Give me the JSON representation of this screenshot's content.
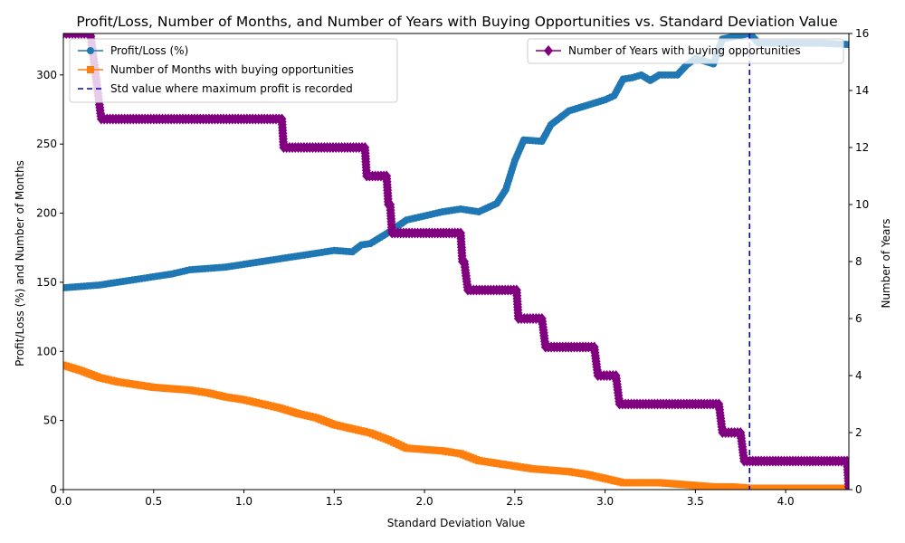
{
  "chart_data": {
    "type": "line",
    "title": "Profit/Loss, Number of Months, and Number of Years with Buying Opportunities vs. Standard Deviation Value",
    "xlabel": "Standard Deviation Value",
    "ylabel_left": "Profit/Loss (%) and Number of Months",
    "ylabel_right": "Number of Years",
    "xlim": [
      0,
      4.35
    ],
    "ylim_left": [
      0,
      330
    ],
    "ylim_right": [
      0,
      16
    ],
    "x_ticks": [
      "0.0",
      "0.5",
      "1.0",
      "1.5",
      "2.0",
      "2.5",
      "3.0",
      "3.5",
      "4.0"
    ],
    "y_left_ticks": [
      "0",
      "50",
      "100",
      "150",
      "200",
      "250",
      "300"
    ],
    "y_right_ticks": [
      "0",
      "2",
      "4",
      "6",
      "8",
      "10",
      "12",
      "14",
      "16"
    ],
    "grid": false,
    "std_max_profit": 3.8,
    "series": [
      {
        "name": "Profit/Loss (%)",
        "axis": "left",
        "color": "#1f77b4",
        "marker": "circle",
        "x": [
          0.0,
          0.1,
          0.2,
          0.3,
          0.4,
          0.5,
          0.6,
          0.7,
          0.8,
          0.9,
          1.0,
          1.1,
          1.2,
          1.3,
          1.4,
          1.5,
          1.6,
          1.65,
          1.7,
          1.8,
          1.9,
          2.0,
          2.1,
          2.2,
          2.3,
          2.4,
          2.45,
          2.5,
          2.55,
          2.65,
          2.7,
          2.8,
          2.9,
          3.0,
          3.05,
          3.1,
          3.15,
          3.2,
          3.25,
          3.3,
          3.4,
          3.45,
          3.5,
          3.6,
          3.65,
          3.8,
          3.85,
          4.0,
          4.2,
          4.35
        ],
        "y": [
          146,
          147,
          148,
          150,
          152,
          154,
          156,
          159,
          160,
          161,
          163,
          165,
          167,
          169,
          171,
          173,
          172,
          177,
          178,
          186,
          195,
          198,
          201,
          203,
          201,
          207,
          217,
          238,
          253,
          252,
          264,
          274,
          278,
          282,
          285,
          297,
          298,
          300,
          296,
          300,
          300,
          307,
          312,
          308,
          326,
          330,
          323,
          323,
          323,
          322
        ]
      },
      {
        "name": "Number of Months with buying opportunities",
        "axis": "left",
        "color": "#ff7f0e",
        "marker": "square",
        "x": [
          0.0,
          0.1,
          0.2,
          0.3,
          0.4,
          0.5,
          0.6,
          0.7,
          0.8,
          0.9,
          1.0,
          1.1,
          1.2,
          1.3,
          1.4,
          1.5,
          1.6,
          1.7,
          1.8,
          1.9,
          2.0,
          2.1,
          2.2,
          2.3,
          2.4,
          2.5,
          2.6,
          2.7,
          2.8,
          2.9,
          3.0,
          3.1,
          3.2,
          3.3,
          3.4,
          3.5,
          3.6,
          3.7,
          3.8,
          4.0,
          4.2,
          4.35
        ],
        "y": [
          90,
          86,
          81,
          78,
          76,
          74,
          73,
          72,
          70,
          67,
          65,
          62,
          59,
          55,
          52,
          47,
          44,
          41,
          36,
          30,
          29,
          28,
          26,
          21,
          19,
          17,
          15,
          14,
          13,
          11,
          8,
          5,
          5,
          5,
          4,
          3,
          2,
          2,
          1,
          1,
          1,
          1
        ]
      },
      {
        "name": "Number of Years with buying opportunities",
        "axis": "right",
        "color": "#800080",
        "marker": "diamond",
        "x": [
          0.0,
          0.15,
          0.17,
          0.19,
          0.21,
          1.21,
          1.22,
          1.67,
          1.68,
          1.79,
          1.8,
          1.81,
          1.82,
          2.2,
          2.21,
          2.22,
          2.24,
          2.51,
          2.52,
          2.65,
          2.67,
          2.94,
          2.96,
          3.06,
          3.08,
          3.63,
          3.65,
          3.75,
          3.77,
          4.34,
          4.35
        ],
        "y": [
          16,
          16,
          15,
          14,
          13,
          13,
          12,
          12,
          11,
          11,
          10,
          10,
          9,
          9,
          8,
          8,
          7,
          7,
          6,
          6,
          5,
          5,
          4,
          4,
          3,
          3,
          2,
          2,
          1,
          1,
          0
        ]
      }
    ],
    "legend_left": {
      "placement": "upper-left",
      "entries": [
        "Profit/Loss (%)",
        "Number of Months with buying opportunities",
        "Std value where maximum profit is recorded"
      ]
    },
    "legend_right": {
      "placement": "upper-right",
      "entries": [
        "Number of Years with buying opportunities"
      ]
    },
    "vline": {
      "name": "Std value where maximum profit is recorded",
      "x": 3.8,
      "color": "#0000cd"
    }
  }
}
